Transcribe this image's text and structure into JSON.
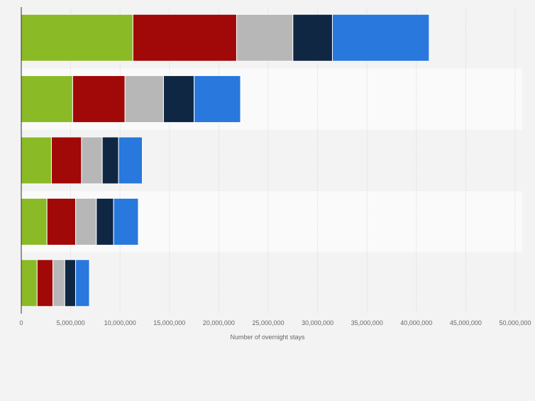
{
  "chart_data": {
    "type": "bar",
    "orientation": "horizontal",
    "stacked": true,
    "xlabel": "Number of overnight stays",
    "xlim": [
      0,
      50000000
    ],
    "xticks": [
      0,
      5000000,
      10000000,
      15000000,
      20000000,
      25000000,
      30000000,
      35000000,
      40000000,
      45000000,
      50000000
    ],
    "xtick_labels": [
      "0",
      "5,000,000",
      "10,000,000",
      "15,000,000",
      "20,000,000",
      "25,000,000",
      "30,000,000",
      "35,000,000",
      "40,000,000",
      "45,000,000",
      "50,000,000"
    ],
    "grid": true,
    "categories": [
      "",
      "",
      "",
      "",
      ""
    ],
    "series": [
      {
        "color": "#8aba26",
        "values": [
          11300000,
          5200000,
          3050000,
          2600000,
          1600000
        ]
      },
      {
        "color": "#a10808",
        "values": [
          10500000,
          5300000,
          3050000,
          2900000,
          1600000
        ]
      },
      {
        "color": "#b7b7b7",
        "values": [
          5700000,
          3900000,
          2100000,
          2100000,
          1200000
        ]
      },
      {
        "color": "#0f2742",
        "values": [
          4000000,
          3100000,
          1650000,
          1750000,
          1100000
        ]
      },
      {
        "color": "#2878dd",
        "values": [
          9800000,
          4700000,
          2400000,
          2500000,
          1400000
        ]
      }
    ]
  }
}
